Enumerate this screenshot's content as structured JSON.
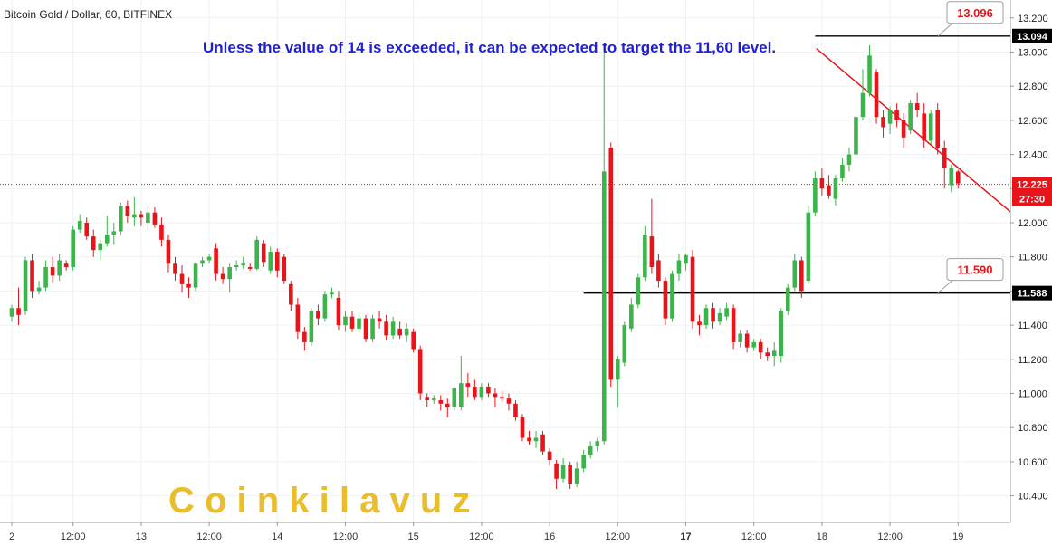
{
  "chart_data": {
    "type": "candlestick",
    "title": "Bitcoin Gold / Dollar, 60, BITFINEX",
    "annotation": "Unless the value of 14 is exceeded, it can be expected to target the 11,60 level.",
    "watermark": "C o i n k i l a v u z",
    "ylim": [
      10.2,
      13.24
    ],
    "y_ticks": [
      "10.400",
      "10.600",
      "10.800",
      "11.000",
      "11.200",
      "11.400",
      "11.600",
      "11.800",
      "12.000",
      "12.200",
      "12.400",
      "12.600",
      "12.800",
      "13.000",
      "13.200"
    ],
    "x_range": [
      0,
      148
    ],
    "x_ticks": [
      {
        "x": 0,
        "label": "2",
        "bold": false
      },
      {
        "x": 9,
        "label": "12:00",
        "bold": false
      },
      {
        "x": 19,
        "label": "13",
        "bold": false
      },
      {
        "x": 29,
        "label": "12:00",
        "bold": false
      },
      {
        "x": 39,
        "label": "14",
        "bold": false
      },
      {
        "x": 49,
        "label": "12:00",
        "bold": false
      },
      {
        "x": 59,
        "label": "15",
        "bold": false
      },
      {
        "x": 69,
        "label": "12:00",
        "bold": false
      },
      {
        "x": 79,
        "label": "16",
        "bold": false
      },
      {
        "x": 89,
        "label": "12:00",
        "bold": false
      },
      {
        "x": 99,
        "label": "17",
        "bold": true
      },
      {
        "x": 109,
        "label": "12:00",
        "bold": false
      },
      {
        "x": 119,
        "label": "18",
        "bold": false
      },
      {
        "x": 129,
        "label": "12:00",
        "bold": false
      },
      {
        "x": 139,
        "label": "19",
        "bold": false
      }
    ],
    "colors": {
      "up": "#3cb44b",
      "down": "#e8141a",
      "trendline": "#e8141a",
      "level": "#000000",
      "badge": "#000000",
      "current": "#e8141a"
    },
    "current_price": {
      "value": 12.225,
      "label": "12.225",
      "countdown": "27:30"
    },
    "levels": [
      {
        "value": 13.094,
        "label": "13.094",
        "x_start": 118,
        "callout": "13.096"
      },
      {
        "value": 11.588,
        "label": "11.588",
        "x_start": 84,
        "callout": "11.590"
      }
    ],
    "trendline": {
      "x1": 118.2,
      "y1": 13.02,
      "x2": 148,
      "y2": 12.02
    },
    "candles": [
      {
        "x": 0,
        "o": 11.45,
        "h": 11.52,
        "l": 11.42,
        "c": 11.5
      },
      {
        "x": 1,
        "o": 11.5,
        "h": 11.62,
        "l": 11.4,
        "c": 11.46
      },
      {
        "x": 2,
        "o": 11.48,
        "h": 11.8,
        "l": 11.46,
        "c": 11.78
      },
      {
        "x": 3,
        "o": 11.78,
        "h": 11.82,
        "l": 11.56,
        "c": 11.6
      },
      {
        "x": 4,
        "o": 11.6,
        "h": 11.66,
        "l": 11.58,
        "c": 11.62
      },
      {
        "x": 5,
        "o": 11.62,
        "h": 11.78,
        "l": 11.6,
        "c": 11.74
      },
      {
        "x": 6,
        "o": 11.74,
        "h": 11.8,
        "l": 11.65,
        "c": 11.69
      },
      {
        "x": 7,
        "o": 11.69,
        "h": 11.82,
        "l": 11.66,
        "c": 11.78
      },
      {
        "x": 8,
        "o": 11.76,
        "h": 11.78,
        "l": 11.72,
        "c": 11.74
      },
      {
        "x": 9,
        "o": 11.74,
        "h": 11.98,
        "l": 11.72,
        "c": 11.96
      },
      {
        "x": 10,
        "o": 11.96,
        "h": 12.05,
        "l": 11.94,
        "c": 12.01
      },
      {
        "x": 11,
        "o": 12.0,
        "h": 12.03,
        "l": 11.9,
        "c": 11.92
      },
      {
        "x": 12,
        "o": 11.92,
        "h": 11.96,
        "l": 11.8,
        "c": 11.84
      },
      {
        "x": 13,
        "o": 11.84,
        "h": 11.9,
        "l": 11.78,
        "c": 11.88
      },
      {
        "x": 14,
        "o": 11.88,
        "h": 12.04,
        "l": 11.86,
        "c": 11.93
      },
      {
        "x": 15,
        "o": 11.93,
        "h": 12.0,
        "l": 11.87,
        "c": 11.95
      },
      {
        "x": 16,
        "o": 11.95,
        "h": 12.12,
        "l": 11.93,
        "c": 12.1
      },
      {
        "x": 17,
        "o": 12.1,
        "h": 12.13,
        "l": 12.0,
        "c": 12.04
      },
      {
        "x": 18,
        "o": 12.03,
        "h": 12.15,
        "l": 11.98,
        "c": 12.05
      },
      {
        "x": 19,
        "o": 12.05,
        "h": 12.07,
        "l": 11.98,
        "c": 12.03
      },
      {
        "x": 20,
        "o": 12.0,
        "h": 12.09,
        "l": 11.95,
        "c": 12.06
      },
      {
        "x": 21,
        "o": 12.06,
        "h": 12.09,
        "l": 11.97,
        "c": 11.99
      },
      {
        "x": 22,
        "o": 11.99,
        "h": 12.03,
        "l": 11.86,
        "c": 11.9
      },
      {
        "x": 23,
        "o": 11.9,
        "h": 11.93,
        "l": 11.71,
        "c": 11.76
      },
      {
        "x": 24,
        "o": 11.76,
        "h": 11.8,
        "l": 11.66,
        "c": 11.7
      },
      {
        "x": 25,
        "o": 11.7,
        "h": 11.75,
        "l": 11.59,
        "c": 11.64
      },
      {
        "x": 26,
        "o": 11.64,
        "h": 11.68,
        "l": 11.56,
        "c": 11.62
      },
      {
        "x": 27,
        "o": 11.62,
        "h": 11.77,
        "l": 11.6,
        "c": 11.76
      },
      {
        "x": 28,
        "o": 11.76,
        "h": 11.8,
        "l": 11.74,
        "c": 11.78
      },
      {
        "x": 29,
        "o": 11.78,
        "h": 11.82,
        "l": 11.76,
        "c": 11.8
      },
      {
        "x": 30,
        "o": 11.85,
        "h": 11.88,
        "l": 11.66,
        "c": 11.7
      },
      {
        "x": 31,
        "o": 11.7,
        "h": 11.74,
        "l": 11.64,
        "c": 11.67
      },
      {
        "x": 32,
        "o": 11.67,
        "h": 11.76,
        "l": 11.59,
        "c": 11.74
      },
      {
        "x": 33,
        "o": 11.74,
        "h": 11.78,
        "l": 11.72,
        "c": 11.75
      },
      {
        "x": 34,
        "o": 11.75,
        "h": 11.8,
        "l": 11.73,
        "c": 11.76
      },
      {
        "x": 35,
        "o": 11.74,
        "h": 11.76,
        "l": 11.72,
        "c": 11.73
      },
      {
        "x": 36,
        "o": 11.73,
        "h": 11.92,
        "l": 11.72,
        "c": 11.9
      },
      {
        "x": 37,
        "o": 11.88,
        "h": 11.9,
        "l": 11.74,
        "c": 11.77
      },
      {
        "x": 38,
        "o": 11.72,
        "h": 11.86,
        "l": 11.7,
        "c": 11.83
      },
      {
        "x": 39,
        "o": 11.83,
        "h": 11.85,
        "l": 11.68,
        "c": 11.72
      },
      {
        "x": 40,
        "o": 11.8,
        "h": 11.82,
        "l": 11.64,
        "c": 11.66
      },
      {
        "x": 41,
        "o": 11.64,
        "h": 11.66,
        "l": 11.48,
        "c": 11.52
      },
      {
        "x": 42,
        "o": 11.52,
        "h": 11.56,
        "l": 11.32,
        "c": 11.36
      },
      {
        "x": 43,
        "o": 11.36,
        "h": 11.39,
        "l": 11.25,
        "c": 11.3
      },
      {
        "x": 44,
        "o": 11.3,
        "h": 11.5,
        "l": 11.28,
        "c": 11.48
      },
      {
        "x": 45,
        "o": 11.48,
        "h": 11.52,
        "l": 11.4,
        "c": 11.44
      },
      {
        "x": 46,
        "o": 11.44,
        "h": 11.6,
        "l": 11.42,
        "c": 11.58
      },
      {
        "x": 47,
        "o": 11.58,
        "h": 11.62,
        "l": 11.56,
        "c": 11.59
      },
      {
        "x": 48,
        "o": 11.56,
        "h": 11.6,
        "l": 11.37,
        "c": 11.4
      },
      {
        "x": 49,
        "o": 11.4,
        "h": 11.48,
        "l": 11.36,
        "c": 11.45
      },
      {
        "x": 50,
        "o": 11.45,
        "h": 11.48,
        "l": 11.36,
        "c": 11.38
      },
      {
        "x": 51,
        "o": 11.38,
        "h": 11.46,
        "l": 11.36,
        "c": 11.44
      },
      {
        "x": 52,
        "o": 11.44,
        "h": 11.46,
        "l": 11.3,
        "c": 11.32
      },
      {
        "x": 53,
        "o": 11.32,
        "h": 11.46,
        "l": 11.3,
        "c": 11.44
      },
      {
        "x": 54,
        "o": 11.44,
        "h": 11.48,
        "l": 11.38,
        "c": 11.42
      },
      {
        "x": 55,
        "o": 11.42,
        "h": 11.46,
        "l": 11.31,
        "c": 11.34
      },
      {
        "x": 56,
        "o": 11.34,
        "h": 11.45,
        "l": 11.32,
        "c": 11.42
      },
      {
        "x": 57,
        "o": 11.38,
        "h": 11.42,
        "l": 11.32,
        "c": 11.34
      },
      {
        "x": 58,
        "o": 11.34,
        "h": 11.41,
        "l": 11.3,
        "c": 11.38
      },
      {
        "x": 59,
        "o": 11.36,
        "h": 11.38,
        "l": 11.24,
        "c": 11.26
      },
      {
        "x": 60,
        "o": 11.26,
        "h": 11.28,
        "l": 10.96,
        "c": 11.0
      },
      {
        "x": 61,
        "o": 10.98,
        "h": 11.0,
        "l": 10.92,
        "c": 10.96
      },
      {
        "x": 62,
        "o": 10.96,
        "h": 10.99,
        "l": 10.94,
        "c": 10.97
      },
      {
        "x": 63,
        "o": 10.96,
        "h": 10.99,
        "l": 10.9,
        "c": 10.94
      },
      {
        "x": 64,
        "o": 10.94,
        "h": 10.97,
        "l": 10.86,
        "c": 10.92
      },
      {
        "x": 65,
        "o": 10.92,
        "h": 11.04,
        "l": 10.9,
        "c": 11.03
      },
      {
        "x": 66,
        "o": 10.92,
        "h": 11.22,
        "l": 10.9,
        "c": 11.06
      },
      {
        "x": 67,
        "o": 11.06,
        "h": 11.12,
        "l": 10.98,
        "c": 11.04
      },
      {
        "x": 68,
        "o": 11.04,
        "h": 11.08,
        "l": 10.96,
        "c": 10.98
      },
      {
        "x": 69,
        "o": 10.98,
        "h": 11.06,
        "l": 10.96,
        "c": 11.04
      },
      {
        "x": 70,
        "o": 11.04,
        "h": 11.06,
        "l": 10.98,
        "c": 11.0
      },
      {
        "x": 71,
        "o": 11.0,
        "h": 11.03,
        "l": 10.92,
        "c": 10.98
      },
      {
        "x": 72,
        "o": 10.98,
        "h": 11.02,
        "l": 10.95,
        "c": 10.97
      },
      {
        "x": 73,
        "o": 10.97,
        "h": 11.0,
        "l": 10.9,
        "c": 10.94
      },
      {
        "x": 74,
        "o": 10.94,
        "h": 10.96,
        "l": 10.84,
        "c": 10.86
      },
      {
        "x": 75,
        "o": 10.86,
        "h": 10.88,
        "l": 10.72,
        "c": 10.74
      },
      {
        "x": 76,
        "o": 10.74,
        "h": 10.78,
        "l": 10.7,
        "c": 10.72
      },
      {
        "x": 77,
        "o": 10.72,
        "h": 10.78,
        "l": 10.68,
        "c": 10.74
      },
      {
        "x": 78,
        "o": 10.76,
        "h": 10.78,
        "l": 10.64,
        "c": 10.66
      },
      {
        "x": 79,
        "o": 10.66,
        "h": 10.68,
        "l": 10.58,
        "c": 10.61
      },
      {
        "x": 80,
        "o": 10.59,
        "h": 10.61,
        "l": 10.44,
        "c": 10.5
      },
      {
        "x": 81,
        "o": 10.5,
        "h": 10.62,
        "l": 10.48,
        "c": 10.58
      },
      {
        "x": 82,
        "o": 10.58,
        "h": 10.6,
        "l": 10.44,
        "c": 10.47
      },
      {
        "x": 83,
        "o": 10.47,
        "h": 10.6,
        "l": 10.45,
        "c": 10.56
      },
      {
        "x": 84,
        "o": 10.56,
        "h": 10.67,
        "l": 10.54,
        "c": 10.64
      },
      {
        "x": 85,
        "o": 10.64,
        "h": 10.72,
        "l": 10.62,
        "c": 10.69
      },
      {
        "x": 86,
        "o": 10.69,
        "h": 10.74,
        "l": 10.66,
        "c": 10.72
      },
      {
        "x": 87,
        "o": 10.72,
        "h": 13.05,
        "l": 10.7,
        "c": 12.3
      },
      {
        "x": 88,
        "o": 12.44,
        "h": 12.47,
        "l": 11.04,
        "c": 11.08
      },
      {
        "x": 89,
        "o": 11.08,
        "h": 11.22,
        "l": 10.92,
        "c": 11.2
      },
      {
        "x": 90,
        "o": 11.18,
        "h": 11.42,
        "l": 11.16,
        "c": 11.4
      },
      {
        "x": 91,
        "o": 11.38,
        "h": 11.56,
        "l": 11.36,
        "c": 11.52
      },
      {
        "x": 92,
        "o": 11.52,
        "h": 11.7,
        "l": 11.5,
        "c": 11.68
      },
      {
        "x": 93,
        "o": 11.68,
        "h": 11.98,
        "l": 11.66,
        "c": 11.93
      },
      {
        "x": 94,
        "o": 11.92,
        "h": 12.14,
        "l": 11.7,
        "c": 11.74
      },
      {
        "x": 95,
        "o": 11.78,
        "h": 11.82,
        "l": 11.62,
        "c": 11.66
      },
      {
        "x": 96,
        "o": 11.66,
        "h": 11.68,
        "l": 11.4,
        "c": 11.44
      },
      {
        "x": 97,
        "o": 11.44,
        "h": 11.72,
        "l": 11.42,
        "c": 11.7
      },
      {
        "x": 98,
        "o": 11.7,
        "h": 11.82,
        "l": 11.66,
        "c": 11.78
      },
      {
        "x": 99,
        "o": 11.76,
        "h": 11.82,
        "l": 11.72,
        "c": 11.81
      },
      {
        "x": 100,
        "o": 11.8,
        "h": 11.84,
        "l": 11.38,
        "c": 11.42
      },
      {
        "x": 101,
        "o": 11.42,
        "h": 11.46,
        "l": 11.34,
        "c": 11.4
      },
      {
        "x": 102,
        "o": 11.4,
        "h": 11.52,
        "l": 11.38,
        "c": 11.5
      },
      {
        "x": 103,
        "o": 11.5,
        "h": 11.53,
        "l": 11.38,
        "c": 11.42
      },
      {
        "x": 104,
        "o": 11.42,
        "h": 11.5,
        "l": 11.4,
        "c": 11.47
      },
      {
        "x": 105,
        "o": 11.45,
        "h": 11.53,
        "l": 11.43,
        "c": 11.5
      },
      {
        "x": 106,
        "o": 11.5,
        "h": 11.52,
        "l": 11.26,
        "c": 11.3
      },
      {
        "x": 107,
        "o": 11.3,
        "h": 11.37,
        "l": 11.27,
        "c": 11.35
      },
      {
        "x": 108,
        "o": 11.35,
        "h": 11.37,
        "l": 11.24,
        "c": 11.27
      },
      {
        "x": 109,
        "o": 11.27,
        "h": 11.32,
        "l": 11.25,
        "c": 11.3
      },
      {
        "x": 110,
        "o": 11.3,
        "h": 11.32,
        "l": 11.2,
        "c": 11.24
      },
      {
        "x": 111,
        "o": 11.24,
        "h": 11.27,
        "l": 11.19,
        "c": 11.22
      },
      {
        "x": 112,
        "o": 11.22,
        "h": 11.3,
        "l": 11.16,
        "c": 11.25
      },
      {
        "x": 113,
        "o": 11.22,
        "h": 11.5,
        "l": 11.18,
        "c": 11.48
      },
      {
        "x": 114,
        "o": 11.48,
        "h": 11.64,
        "l": 11.46,
        "c": 11.62
      },
      {
        "x": 115,
        "o": 11.62,
        "h": 11.82,
        "l": 11.6,
        "c": 11.78
      },
      {
        "x": 116,
        "o": 11.78,
        "h": 11.8,
        "l": 11.56,
        "c": 11.6
      },
      {
        "x": 117,
        "o": 11.66,
        "h": 12.1,
        "l": 11.64,
        "c": 12.06
      },
      {
        "x": 118,
        "o": 12.06,
        "h": 12.3,
        "l": 12.04,
        "c": 12.26
      },
      {
        "x": 119,
        "o": 12.26,
        "h": 12.32,
        "l": 12.16,
        "c": 12.2
      },
      {
        "x": 120,
        "o": 12.22,
        "h": 12.28,
        "l": 12.14,
        "c": 12.16
      },
      {
        "x": 121,
        "o": 12.14,
        "h": 12.28,
        "l": 12.1,
        "c": 12.26
      },
      {
        "x": 122,
        "o": 12.26,
        "h": 12.38,
        "l": 12.24,
        "c": 12.34
      },
      {
        "x": 123,
        "o": 12.34,
        "h": 12.44,
        "l": 12.3,
        "c": 12.4
      },
      {
        "x": 124,
        "o": 12.4,
        "h": 12.64,
        "l": 12.38,
        "c": 12.62
      },
      {
        "x": 125,
        "o": 12.62,
        "h": 12.9,
        "l": 12.6,
        "c": 12.76
      },
      {
        "x": 126,
        "o": 12.76,
        "h": 13.04,
        "l": 12.74,
        "c": 12.98
      },
      {
        "x": 127,
        "o": 12.88,
        "h": 12.9,
        "l": 12.58,
        "c": 12.62
      },
      {
        "x": 128,
        "o": 12.62,
        "h": 12.66,
        "l": 12.5,
        "c": 12.56
      },
      {
        "x": 129,
        "o": 12.58,
        "h": 12.68,
        "l": 12.52,
        "c": 12.66
      },
      {
        "x": 130,
        "o": 12.66,
        "h": 12.7,
        "l": 12.56,
        "c": 12.6
      },
      {
        "x": 131,
        "o": 12.6,
        "h": 12.64,
        "l": 12.44,
        "c": 12.5
      },
      {
        "x": 132,
        "o": 12.54,
        "h": 12.72,
        "l": 12.52,
        "c": 12.7
      },
      {
        "x": 133,
        "o": 12.7,
        "h": 12.76,
        "l": 12.62,
        "c": 12.66
      },
      {
        "x": 134,
        "o": 12.64,
        "h": 12.7,
        "l": 12.44,
        "c": 12.48
      },
      {
        "x": 135,
        "o": 12.48,
        "h": 12.66,
        "l": 12.46,
        "c": 12.64
      },
      {
        "x": 136,
        "o": 12.66,
        "h": 12.7,
        "l": 12.4,
        "c": 12.44
      },
      {
        "x": 137,
        "o": 12.44,
        "h": 12.48,
        "l": 12.2,
        "c": 12.32
      },
      {
        "x": 138,
        "o": 12.22,
        "h": 12.34,
        "l": 12.18,
        "c": 12.32
      },
      {
        "x": 139,
        "o": 12.3,
        "h": 12.31,
        "l": 12.2,
        "c": 12.23
      }
    ]
  }
}
